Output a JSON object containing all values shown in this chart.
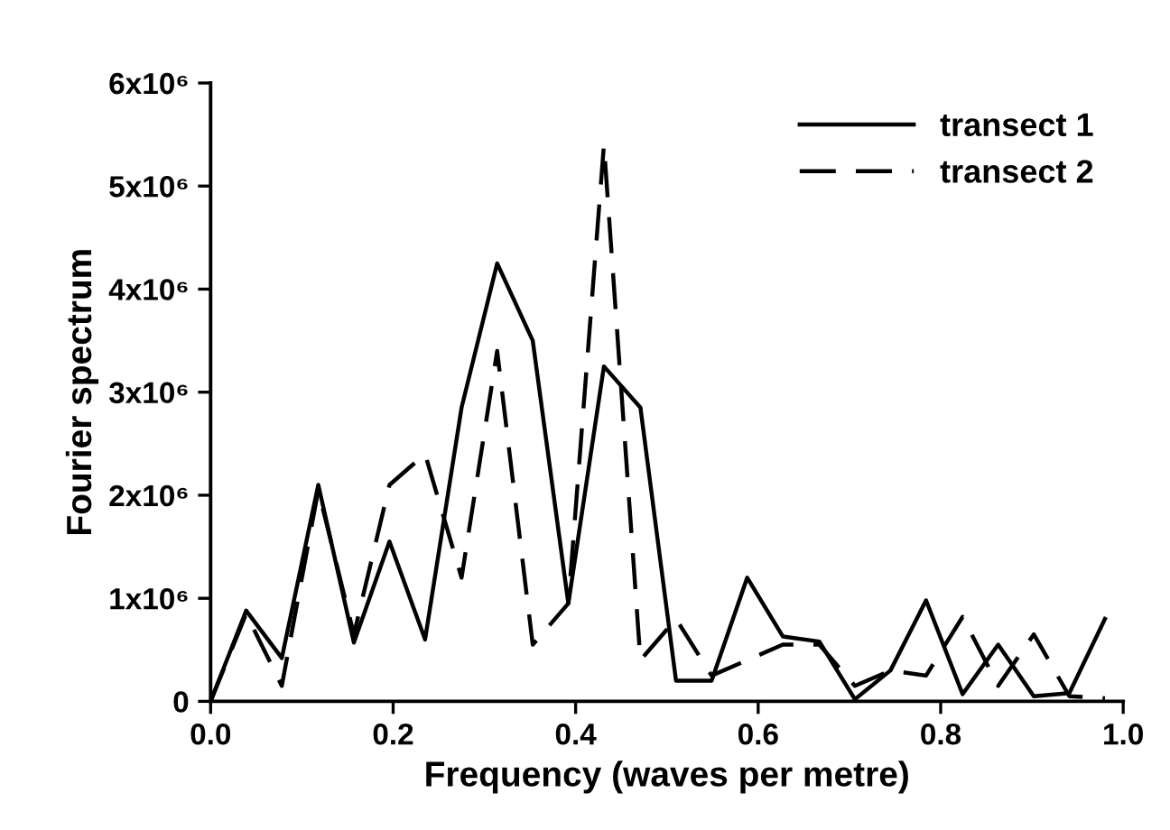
{
  "chart_data": {
    "type": "line",
    "xlabel": "Frequency (waves per metre)",
    "ylabel": "Fourier spectrum",
    "x": [
      0,
      0.039,
      0.078,
      0.118,
      0.157,
      0.196,
      0.235,
      0.275,
      0.314,
      0.353,
      0.392,
      0.431,
      0.471,
      0.51,
      0.549,
      0.588,
      0.627,
      0.667,
      0.706,
      0.745,
      0.784,
      0.824,
      0.863,
      0.902,
      0.941,
      0.98
    ],
    "series": [
      {
        "name": "transect 1",
        "color": "#000000",
        "line_style": "solid",
        "values": [
          0,
          880000,
          420000,
          2100000,
          570000,
          1550000,
          600000,
          2850000,
          4250000,
          3500000,
          950000,
          3250000,
          2850000,
          200000,
          200000,
          1200000,
          630000,
          580000,
          20000,
          300000,
          980000,
          70000,
          550000,
          50000,
          80000,
          800000
        ]
      },
      {
        "name": "transect 2",
        "color": "#000000",
        "line_style": "dashed",
        "values": [
          0,
          850000,
          150000,
          2050000,
          650000,
          2100000,
          2400000,
          1200000,
          3400000,
          550000,
          950000,
          5400000,
          400000,
          800000,
          250000,
          400000,
          550000,
          550000,
          150000,
          300000,
          250000,
          820000,
          150000,
          650000,
          50000,
          30000
        ]
      }
    ],
    "xlim": [
      0,
      1
    ],
    "ylim": [
      0,
      6000000
    ],
    "xticks": [
      {
        "value": 0,
        "label": "0.0"
      },
      {
        "value": 0.2,
        "label": "0.2"
      },
      {
        "value": 0.4,
        "label": "0.4"
      },
      {
        "value": 0.6,
        "label": "0.6"
      },
      {
        "value": 0.8,
        "label": "0.8"
      },
      {
        "value": 1,
        "label": "1.0"
      }
    ],
    "yticks": [
      0,
      {
        "value": 1000000,
        "label": "1x10⁶"
      },
      {
        "value": 2000000,
        "label": "2x10⁶"
      },
      {
        "value": 3000000,
        "label": "3x10⁶"
      },
      {
        "value": 4000000,
        "label": "4x10⁶"
      },
      {
        "value": 5000000,
        "label": "5x10⁶"
      },
      {
        "value": 6000000,
        "label": "6x10⁶"
      }
    ],
    "legend": "top right",
    "grid": false
  }
}
